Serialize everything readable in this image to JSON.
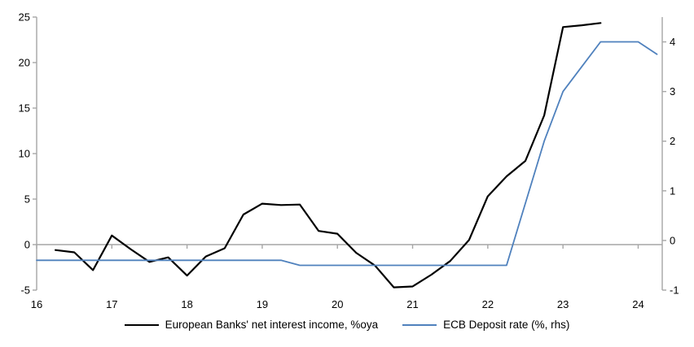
{
  "chart_data": {
    "type": "line",
    "title": "",
    "x_axis": {
      "range": [
        16,
        24.32
      ],
      "tick_values": [
        16,
        17,
        18,
        19,
        20,
        21,
        22,
        23,
        24
      ],
      "tick_labels": [
        "16",
        "17",
        "18",
        "19",
        "20",
        "21",
        "22",
        "23",
        "24"
      ]
    },
    "left_axis": {
      "range": [
        -5,
        25
      ],
      "ticks": [
        -5,
        0,
        5,
        10,
        15,
        20,
        25
      ]
    },
    "right_axis": {
      "range": [
        -1,
        4.5
      ],
      "ticks": [
        -1,
        0,
        1,
        2,
        3,
        4
      ]
    },
    "grid": "zero-line-only",
    "legend_position": "bottom-center",
    "series": [
      {
        "name": "European Banks' net interest income, %oya",
        "axis": "left",
        "color": "#000000",
        "stroke_width": 2.2,
        "x": [
          16.25,
          16.5,
          16.75,
          17.0,
          17.25,
          17.5,
          17.75,
          18.0,
          18.25,
          18.5,
          18.75,
          19.0,
          19.25,
          19.5,
          19.75,
          20.0,
          20.25,
          20.5,
          20.75,
          21.0,
          21.25,
          21.5,
          21.75,
          22.0,
          22.25,
          22.5,
          22.75,
          23.0,
          23.25,
          23.5
        ],
        "values": [
          -0.6,
          -0.85,
          -2.8,
          1.0,
          -0.5,
          -1.9,
          -1.4,
          -3.4,
          -1.3,
          -0.4,
          3.3,
          4.5,
          4.35,
          4.4,
          1.5,
          1.2,
          -0.9,
          -2.3,
          -4.7,
          -4.6,
          -3.3,
          -1.8,
          0.5,
          5.3,
          7.5,
          9.2,
          14.2,
          23.9,
          24.1,
          24.35
        ]
      },
      {
        "name": "ECB Deposit rate (%, rhs)",
        "axis": "right",
        "color": "#4f81bd",
        "stroke_width": 1.8,
        "x": [
          16.0,
          16.25,
          16.5,
          16.75,
          17.0,
          17.25,
          17.5,
          17.75,
          18.0,
          18.25,
          18.5,
          18.75,
          19.0,
          19.25,
          19.5,
          19.75,
          20.0,
          20.25,
          20.5,
          20.75,
          21.0,
          21.25,
          21.5,
          21.75,
          22.0,
          22.25,
          22.5,
          22.75,
          23.0,
          23.25,
          23.5,
          23.75,
          24.0,
          24.25
        ],
        "values": [
          -0.4,
          -0.4,
          -0.4,
          -0.4,
          -0.4,
          -0.4,
          -0.4,
          -0.4,
          -0.4,
          -0.4,
          -0.4,
          -0.4,
          -0.4,
          -0.4,
          -0.5,
          -0.5,
          -0.5,
          -0.5,
          -0.5,
          -0.5,
          -0.5,
          -0.5,
          -0.5,
          -0.5,
          -0.5,
          -0.5,
          0.75,
          2.0,
          3.0,
          3.5,
          4.0,
          4.0,
          4.0,
          3.75
        ]
      }
    ],
    "colors": {
      "axis": "#a6a6a6",
      "zero_line": "#a6a6a6",
      "text": "#000000",
      "background": "#ffffff"
    }
  }
}
